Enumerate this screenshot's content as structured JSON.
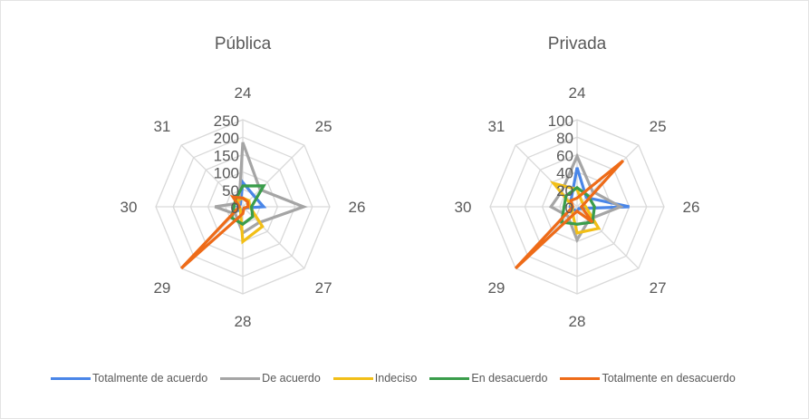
{
  "chart_data": [
    {
      "type": "radar",
      "title": "Pública",
      "categories": [
        "24",
        "25",
        "26",
        "27",
        "28",
        "29",
        "30",
        "31"
      ],
      "radial_ticks": [
        0,
        50,
        100,
        150,
        200,
        250
      ],
      "rmax": 250,
      "series": [
        {
          "name": "Totalmente de acuerdo",
          "values": [
            70,
            45,
            60,
            5,
            10,
            15,
            15,
            10
          ]
        },
        {
          "name": "De acuerdo",
          "values": [
            185,
            70,
            175,
            65,
            75,
            30,
            80,
            15
          ]
        },
        {
          "name": "Indeciso",
          "values": [
            25,
            25,
            20,
            80,
            100,
            10,
            10,
            25
          ]
        },
        {
          "name": "En desacuerdo",
          "values": [
            60,
            85,
            25,
            40,
            50,
            45,
            25,
            30
          ]
        },
        {
          "name": "Totalmente en desacuerdo",
          "values": [
            25,
            20,
            15,
            5,
            20,
            250,
            10,
            40
          ]
        }
      ]
    },
    {
      "type": "radar",
      "title": "Privada",
      "categories": [
        "24",
        "25",
        "26",
        "27",
        "28",
        "29",
        "30",
        "31"
      ],
      "radial_ticks": [
        0,
        20,
        40,
        60,
        80,
        100
      ],
      "rmax": 100,
      "series": [
        {
          "name": "Totalmente de acuerdo",
          "values": [
            45,
            15,
            60,
            3,
            5,
            5,
            8,
            10
          ]
        },
        {
          "name": "De acuerdo",
          "values": [
            58,
            25,
            50,
            20,
            38,
            15,
            30,
            25
          ]
        },
        {
          "name": "Indeciso",
          "values": [
            20,
            8,
            10,
            35,
            30,
            8,
            5,
            38
          ]
        },
        {
          "name": "En desacuerdo",
          "values": [
            22,
            18,
            20,
            25,
            20,
            25,
            15,
            18
          ]
        },
        {
          "name": "Totalmente en desacuerdo",
          "values": [
            10,
            75,
            5,
            25,
            5,
            100,
            5,
            10
          ]
        }
      ]
    }
  ],
  "legend": {
    "position": "bottom",
    "items": [
      {
        "label": "Totalmente de acuerdo",
        "color": "#4a86e8"
      },
      {
        "label": "De acuerdo",
        "color": "#a5a5a5"
      },
      {
        "label": "Indeciso",
        "color": "#f2bf17"
      },
      {
        "label": "En desacuerdo",
        "color": "#3a9d4b"
      },
      {
        "label": "Totalmente en desacuerdo",
        "color": "#ee6b18"
      }
    ]
  },
  "colors": {
    "grid": "#d9d9d9",
    "text": "#595959"
  }
}
